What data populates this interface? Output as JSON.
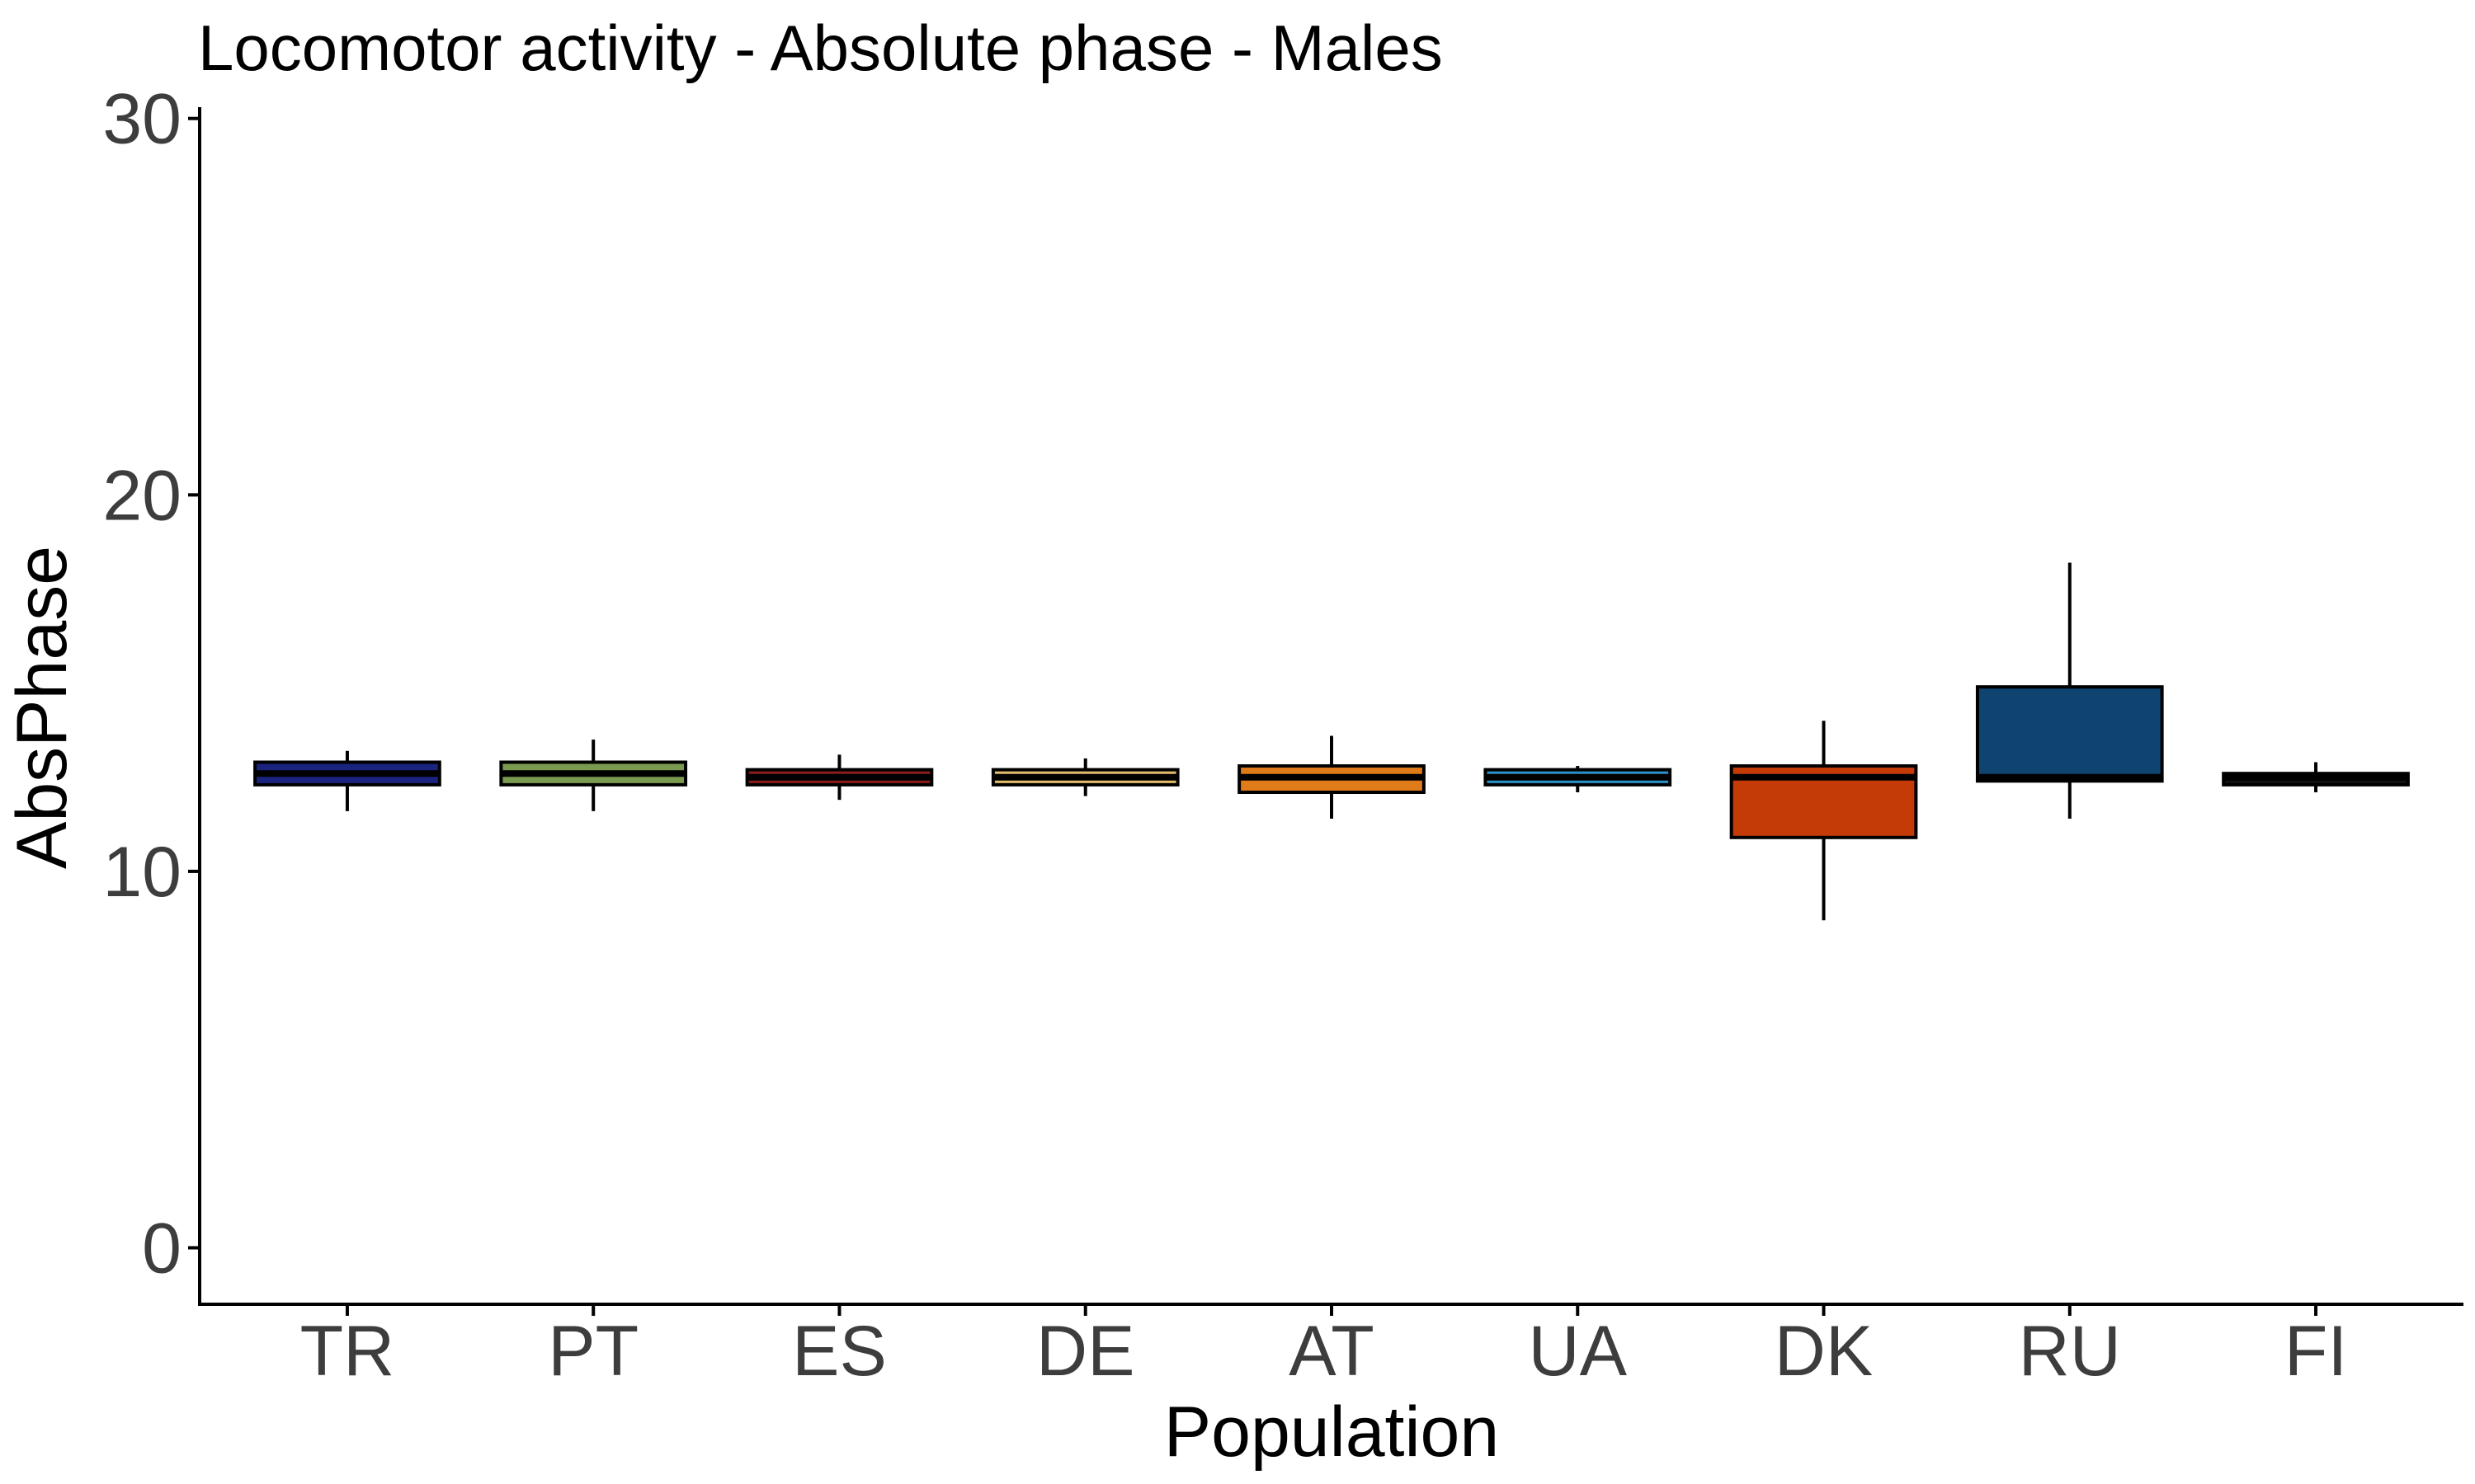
{
  "chart_data": {
    "type": "box",
    "title": "Locomotor activity - Absolute phase - Males",
    "xlabel": "Population",
    "ylabel": "AbsPhase",
    "ylim": [
      -1.5,
      30.3
    ],
    "yticks": [
      0,
      10,
      20,
      30
    ],
    "grid": false,
    "legend": "none",
    "categories": [
      "TR",
      "PT",
      "ES",
      "DE",
      "AT",
      "UA",
      "DK",
      "RU",
      "FI"
    ],
    "boxes": [
      {
        "category": "TR",
        "whisker_low": 11.6,
        "q1": 12.3,
        "median": 12.6,
        "q3": 12.9,
        "whisker_high": 13.2,
        "fill": "#1a237e"
      },
      {
        "category": "PT",
        "whisker_low": 11.6,
        "q1": 12.3,
        "median": 12.6,
        "q3": 12.9,
        "whisker_high": 13.5,
        "fill": "#7a9a50"
      },
      {
        "category": "ES",
        "whisker_low": 11.9,
        "q1": 12.3,
        "median": 12.5,
        "q3": 12.7,
        "whisker_high": 13.1,
        "fill": "#8b1a1a"
      },
      {
        "category": "DE",
        "whisker_low": 12.0,
        "q1": 12.3,
        "median": 12.5,
        "q3": 12.7,
        "whisker_high": 13.0,
        "fill": "#e0b96a"
      },
      {
        "category": "AT",
        "whisker_low": 11.4,
        "q1": 12.1,
        "median": 12.5,
        "q3": 12.8,
        "whisker_high": 13.6,
        "fill": "#e07b1a"
      },
      {
        "category": "UA",
        "whisker_low": 12.1,
        "q1": 12.3,
        "median": 12.5,
        "q3": 12.7,
        "whisker_high": 12.8,
        "fill": "#2a8fc7"
      },
      {
        "category": "DK",
        "whisker_low": 8.7,
        "q1": 10.9,
        "median": 12.5,
        "q3": 12.8,
        "whisker_high": 14.0,
        "fill": "#c43b08"
      },
      {
        "category": "RU",
        "whisker_low": 11.4,
        "q1": 12.4,
        "median": 12.5,
        "q3": 14.9,
        "whisker_high": 18.2,
        "fill": "#0f4470"
      },
      {
        "category": "FI",
        "whisker_low": 12.1,
        "q1": 12.3,
        "median": 12.5,
        "q3": 12.6,
        "whisker_high": 12.9,
        "fill": "#111111"
      }
    ]
  }
}
